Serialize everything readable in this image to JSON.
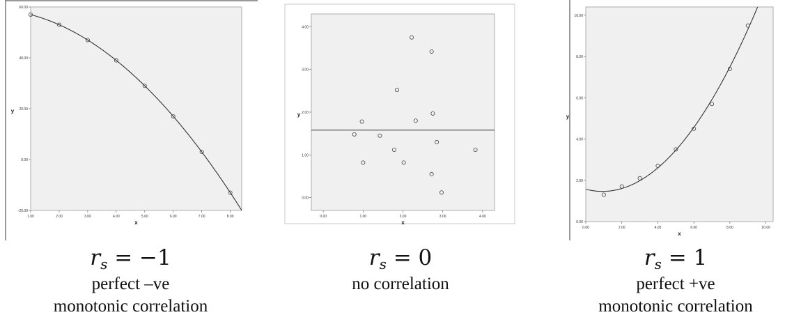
{
  "chart_data": [
    {
      "type": "scatter",
      "xlabel": "x",
      "ylabel": "y",
      "xlim": [
        1.0,
        8.4
      ],
      "ylim": [
        -20.0,
        60.0
      ],
      "xticks": [
        "1.00",
        "2.00",
        "3.00",
        "4.00",
        "5.00",
        "6.00",
        "7.00",
        "8.00"
      ],
      "yticks": [
        "-20.00",
        "0.00",
        "20.00",
        "40.00",
        "60.00"
      ],
      "grid": false,
      "fit_line": "curve",
      "x": [
        1,
        2,
        3,
        4,
        5,
        6,
        7,
        8
      ],
      "y": [
        57,
        53,
        47,
        39,
        29,
        17,
        3,
        -13
      ],
      "caption_stat": "= −1",
      "caption_line1": "perfect –ve",
      "caption_line2": "monotonic correlation"
    },
    {
      "type": "scatter",
      "xlabel": "x",
      "ylabel": "y",
      "xlim": [
        -0.3,
        4.3
      ],
      "ylim": [
        -0.3,
        4.3
      ],
      "xticks": [
        "0.00",
        "1.00",
        "2.00",
        "3.00",
        "4.00"
      ],
      "yticks": [
        "0.00",
        "1.00",
        "2.00",
        "3.00",
        "4.00"
      ],
      "grid": false,
      "fit_line": "horizontal",
      "fit_y": 1.58,
      "x": [
        0.78,
        0.97,
        1.0,
        1.42,
        1.78,
        1.85,
        2.02,
        2.22,
        2.32,
        2.72,
        2.72,
        2.75,
        2.85,
        2.97,
        3.82
      ],
      "y": [
        1.48,
        1.78,
        0.82,
        1.45,
        1.12,
        2.52,
        0.82,
        3.75,
        1.8,
        0.55,
        3.42,
        1.97,
        1.3,
        0.12,
        1.12
      ],
      "caption_stat": "= 0",
      "caption_line1": "no correlation",
      "caption_line2": ""
    },
    {
      "type": "scatter",
      "xlabel": "x",
      "ylabel": "y",
      "xlim": [
        0.0,
        10.4
      ],
      "ylim": [
        0.0,
        10.4
      ],
      "xticks": [
        "0.00",
        "2.00",
        "4.00",
        "6.00",
        "8.00",
        "10.00"
      ],
      "yticks": [
        "0.00",
        "2.00",
        "4.00",
        "6.00",
        "8.00",
        "10.00"
      ],
      "grid": false,
      "fit_line": "curve",
      "x": [
        1,
        2,
        3,
        4,
        5,
        6,
        7,
        8,
        9
      ],
      "y": [
        1.3,
        1.7,
        2.1,
        2.7,
        3.5,
        4.5,
        5.7,
        7.4,
        9.5
      ],
      "caption_stat": "= 1",
      "caption_line1": "perfect +ve",
      "caption_line2": "monotonic correlation"
    }
  ]
}
